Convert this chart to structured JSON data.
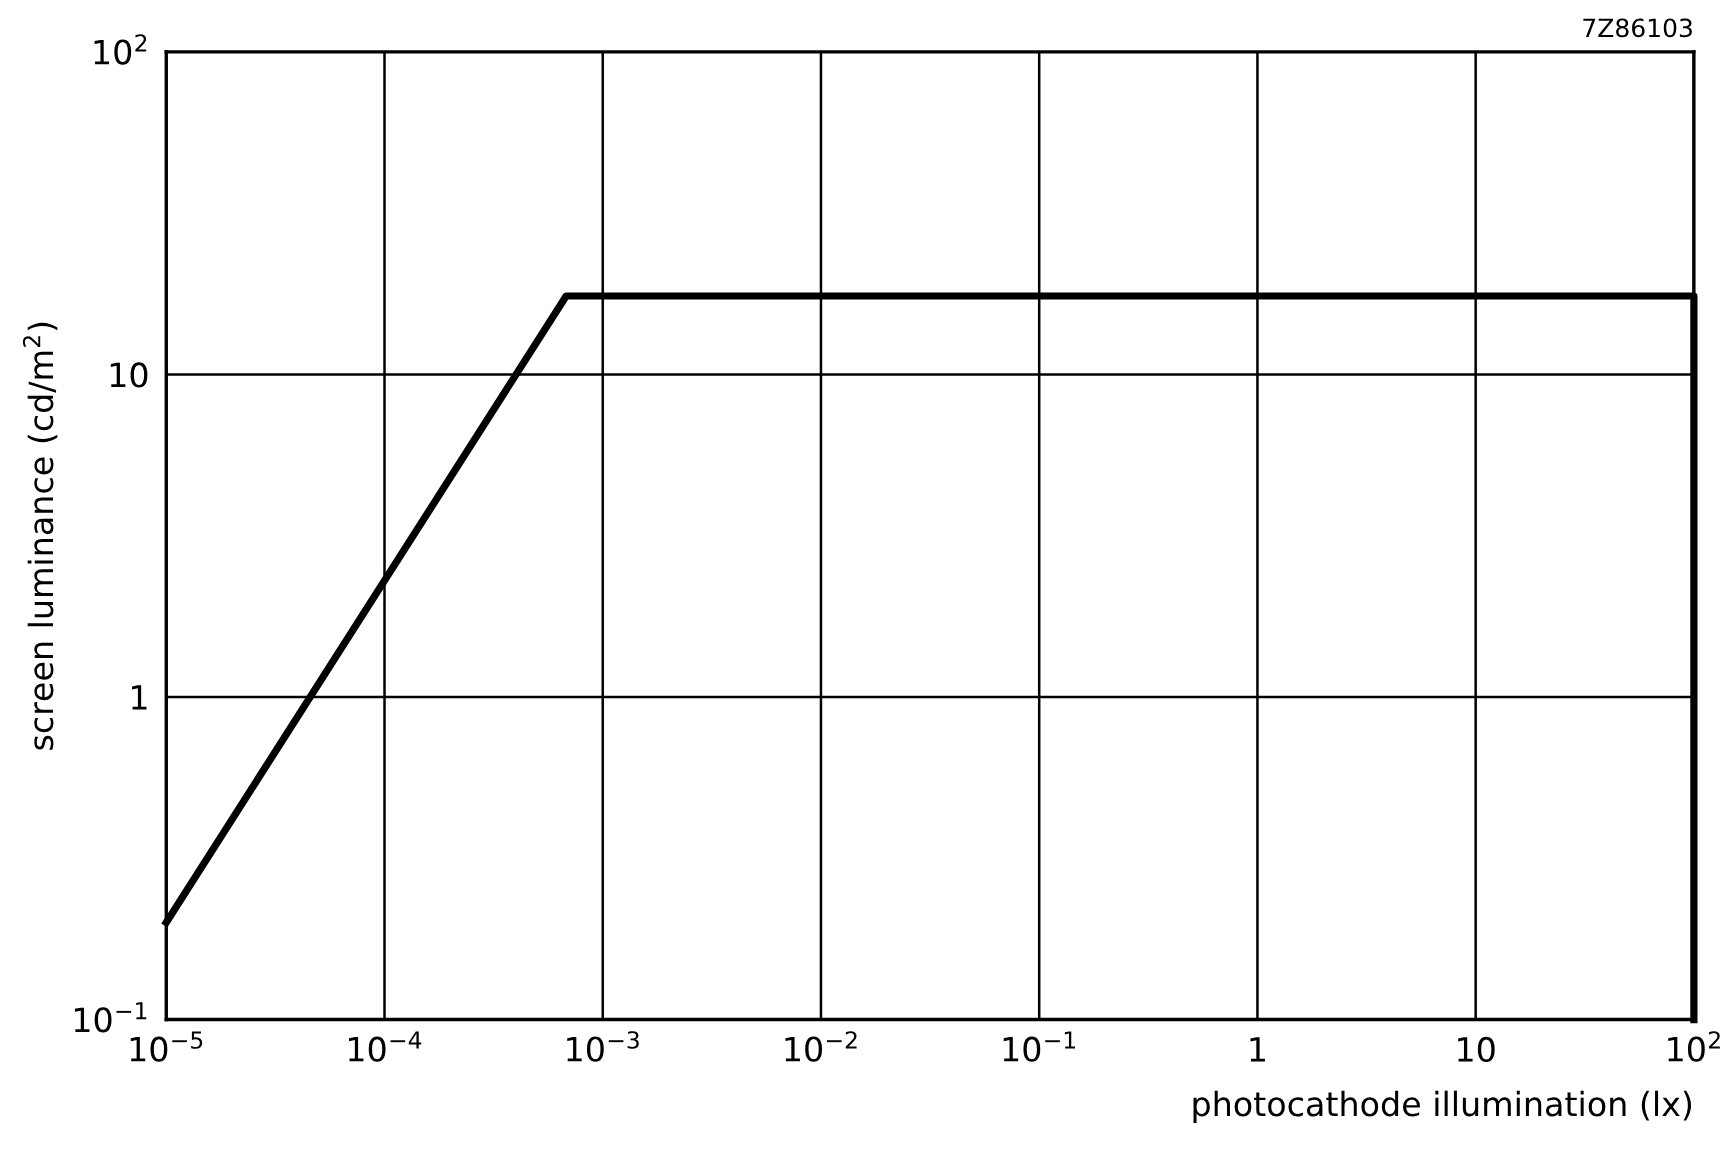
{
  "chart_data": {
    "type": "line",
    "xlabel": "photocathode illumination (lx)",
    "ylabel": "screen luminance (cd/m$^{2}$)",
    "annotations": [
      "7Z86103"
    ],
    "log": "xy",
    "series": [
      {
        "color": "#000000",
        "x": [
          1e-05,
          0.00068,
          100,
          100
        ],
        "values": [
          0.2,
          17.5,
          17.5,
          0.1
        ]
      }
    ],
    "xlim": [
      1e-05,
      100
    ],
    "ylim": [
      0.1,
      100
    ],
    "xticks": [
      {
        "value": 1e-05,
        "label": "10$^{−5}$"
      },
      {
        "value": 0.0001,
        "label": "10$^{−4}$"
      },
      {
        "value": 0.001,
        "label": "10$^{−3}$"
      },
      {
        "value": 0.01,
        "label": "10$^{−2}$"
      },
      {
        "value": 0.1,
        "label": "10$^{−1}$"
      },
      1,
      10,
      {
        "value": 100,
        "label": "10$^{2}$"
      }
    ],
    "yticks": [
      {
        "value": 0.1,
        "label": "10$^{−1}$"
      },
      1,
      10,
      {
        "value": 100,
        "label": "10$^{2}$"
      }
    ],
    "grid": true,
    "marker": "none",
    "line_style": "solid"
  }
}
